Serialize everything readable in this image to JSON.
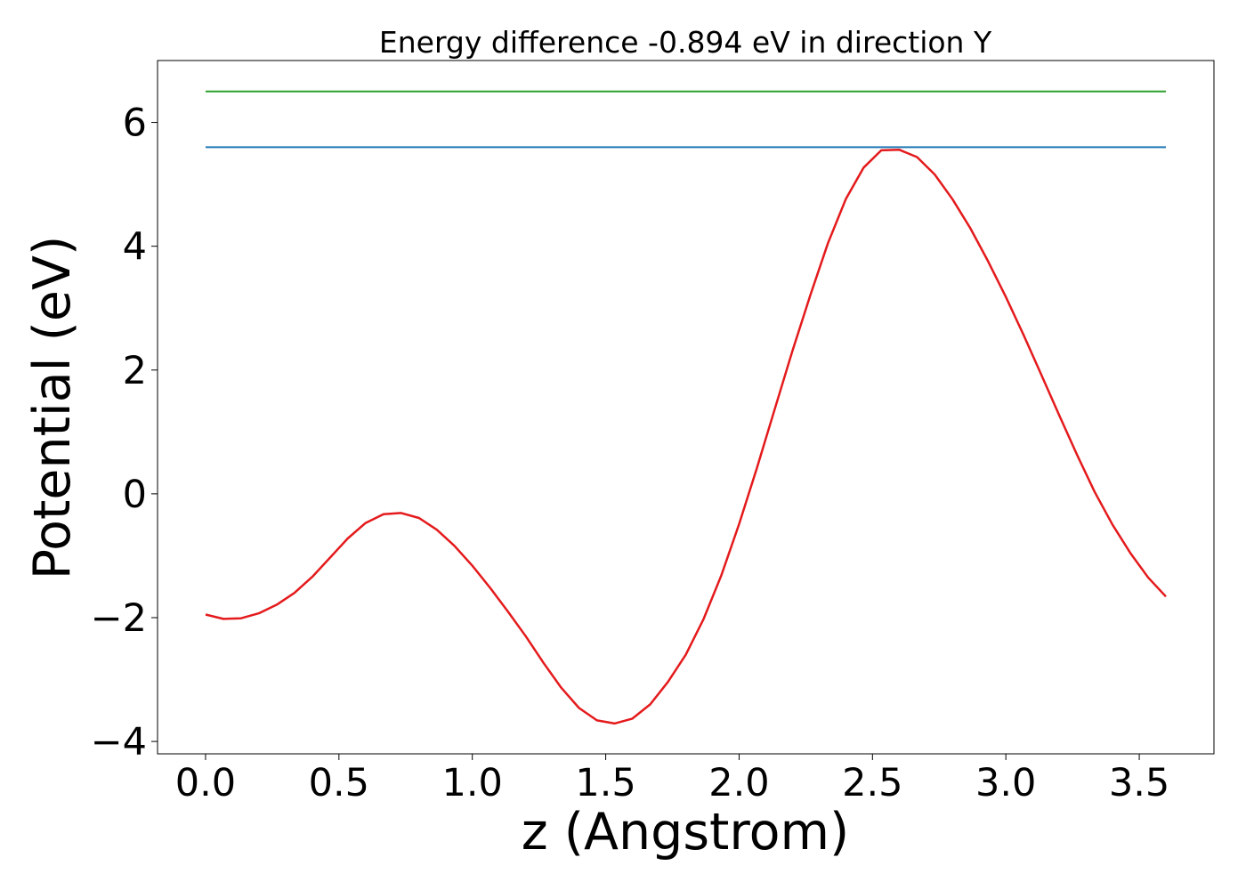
{
  "chart_data": {
    "type": "line",
    "title": "Energy difference -0.894 eV in direction Y",
    "xlabel": "z (Angstrom)",
    "ylabel": "Potential (eV)",
    "xlim": [
      -0.18,
      3.78
    ],
    "ylim": [
      -4.2,
      7.0
    ],
    "xticks": [
      0.0,
      0.5,
      1.0,
      1.5,
      2.0,
      2.5,
      3.0,
      3.5
    ],
    "xtick_labels": [
      "0.0",
      "0.5",
      "1.0",
      "1.5",
      "2.0",
      "2.5",
      "3.0",
      "3.5"
    ],
    "yticks": [
      -4,
      -2,
      0,
      2,
      4,
      6
    ],
    "ytick_labels": [
      "−4",
      "−2",
      "0",
      "2",
      "4",
      "6"
    ],
    "grid": false,
    "series": [
      {
        "color": "#2ca02c",
        "x": [
          0.0,
          3.6
        ],
        "y": [
          6.5,
          6.5
        ]
      },
      {
        "color": "#1f77b4",
        "x": [
          0.0,
          3.6
        ],
        "y": [
          5.6,
          5.6
        ]
      },
      {
        "color": "#e41a1c",
        "x": [
          0.0,
          0.067,
          0.133,
          0.2,
          0.267,
          0.333,
          0.4,
          0.467,
          0.533,
          0.6,
          0.667,
          0.733,
          0.8,
          0.867,
          0.933,
          1.0,
          1.067,
          1.133,
          1.2,
          1.267,
          1.333,
          1.4,
          1.467,
          1.533,
          1.6,
          1.667,
          1.733,
          1.8,
          1.867,
          1.933,
          2.0,
          2.067,
          2.133,
          2.2,
          2.267,
          2.333,
          2.4,
          2.467,
          2.533,
          2.6,
          2.667,
          2.733,
          2.8,
          2.867,
          2.933,
          3.0,
          3.067,
          3.133,
          3.2,
          3.267,
          3.333,
          3.4,
          3.467,
          3.533,
          3.6
        ],
        "y": [
          -1.95,
          -2.02,
          -2.01,
          -1.93,
          -1.79,
          -1.6,
          -1.34,
          -1.03,
          -0.72,
          -0.47,
          -0.33,
          -0.31,
          -0.39,
          -0.58,
          -0.84,
          -1.16,
          -1.52,
          -1.9,
          -2.3,
          -2.73,
          -3.13,
          -3.46,
          -3.66,
          -3.71,
          -3.63,
          -3.4,
          -3.04,
          -2.6,
          -2.02,
          -1.32,
          -0.49,
          0.42,
          1.36,
          2.31,
          3.21,
          4.05,
          4.76,
          5.27,
          5.55,
          5.56,
          5.44,
          5.16,
          4.76,
          4.29,
          3.76,
          3.18,
          2.56,
          1.92,
          1.27,
          0.63,
          0.03,
          -0.5,
          -0.96,
          -1.35,
          -1.66
        ]
      }
    ]
  }
}
